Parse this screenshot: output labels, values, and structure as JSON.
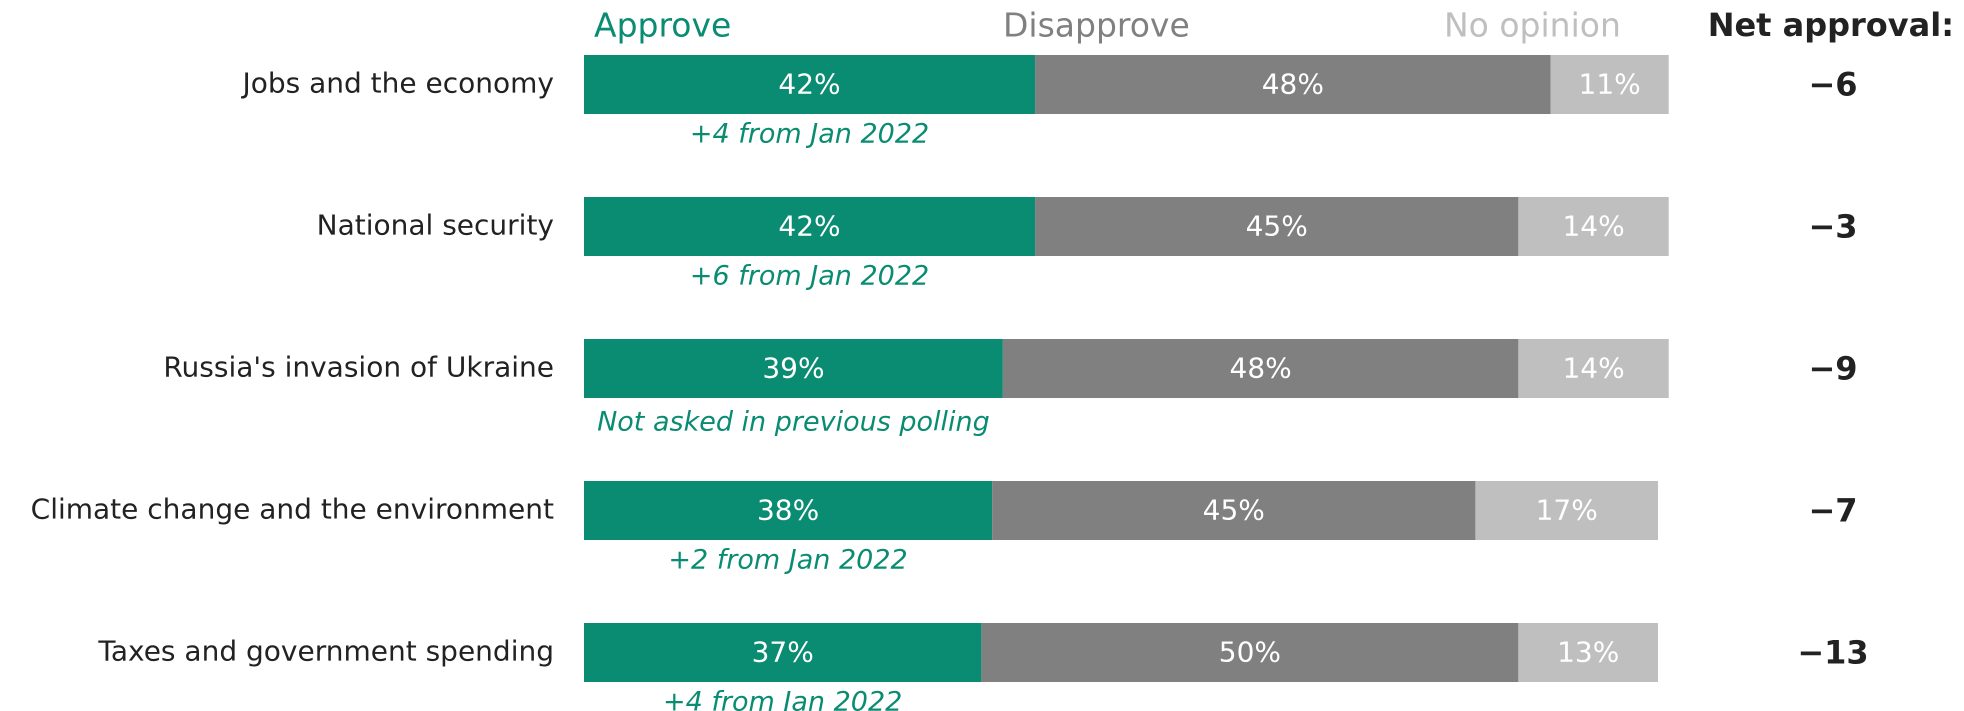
{
  "chart_data": {
    "type": "stacked_bar_horizontal",
    "categories": [
      "Jobs and the economy",
      "National security",
      "Russia's invasion of Ukraine",
      "Climate change and the environment",
      "Taxes and government spending"
    ],
    "series": [
      {
        "name": "Approve",
        "color": "#0a8c72",
        "values": [
          42,
          42,
          39,
          38,
          37
        ],
        "value_labels": [
          "42%",
          "42%",
          "39%",
          "38%",
          "37%"
        ]
      },
      {
        "name": "Disapprove",
        "color": "#808080",
        "values": [
          48,
          45,
          48,
          45,
          50
        ],
        "value_labels": [
          "48%",
          "45%",
          "48%",
          "45%",
          "50%"
        ]
      },
      {
        "name": "No opinion",
        "color": "#bfbfbf",
        "values": [
          11,
          14,
          14,
          17,
          13
        ],
        "value_labels": [
          "11%",
          "14%",
          "14%",
          "17%",
          "13%"
        ]
      }
    ],
    "annotations": [
      "+4 from Jan 2022",
      "+6 from Jan 2022",
      "Not asked in previous polling",
      "+2 from Jan 2022",
      "+4 from Jan 2022"
    ],
    "net_approval": {
      "title": "Net approval:",
      "values": [
        -6,
        -3,
        -9,
        -7,
        -13
      ],
      "value_labels": [
        "−6",
        "−3",
        "−9",
        "−7",
        "−13"
      ]
    }
  }
}
